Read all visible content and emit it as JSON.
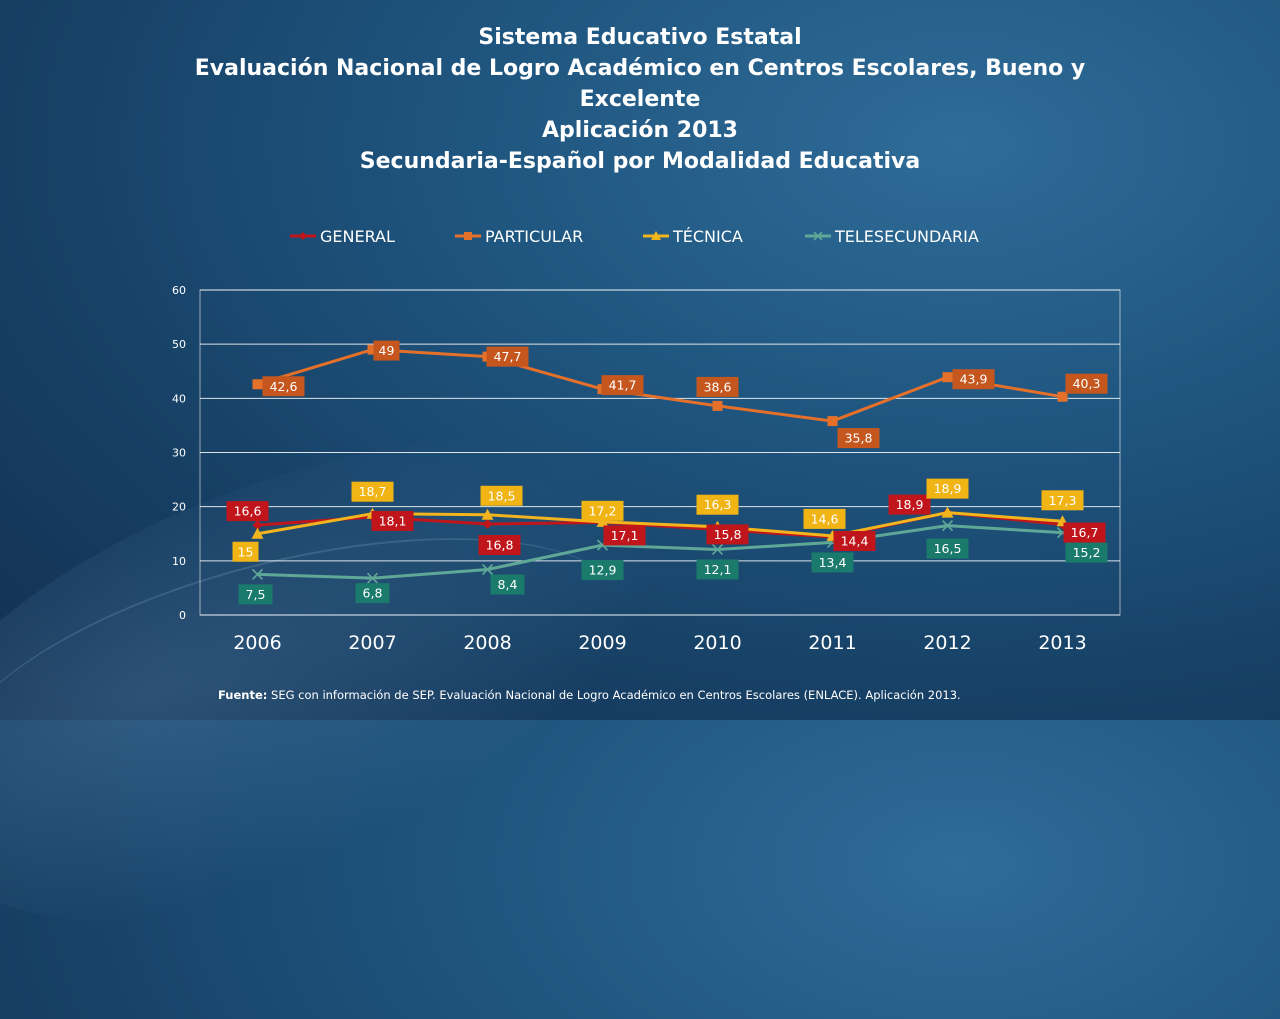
{
  "header": {
    "line1": "Sistema Educativo Estatal",
    "line2": "Evaluación Nacional de Logro Académico en Centros Escolares, Bueno y Excelente",
    "line3": "Aplicación 2013",
    "line4": "Secundaria-Español por Modalidad Educativa"
  },
  "footer": {
    "label": "Fuente:",
    "text": " SEG con información de SEP. Evaluación Nacional de Logro Académico en Centros Escolares (ENLACE). Aplicación 2013."
  },
  "chart_data": {
    "type": "line",
    "categories": [
      "2006",
      "2007",
      "2008",
      "2009",
      "2010",
      "2011",
      "2012",
      "2013"
    ],
    "ylim": [
      0,
      60
    ],
    "yticks": [
      0,
      10,
      20,
      30,
      40,
      50,
      60
    ],
    "grid": true,
    "legend_position": "top",
    "series": [
      {
        "name": "GENERAL",
        "color": "#c0161b",
        "label_bg": "#c0161b",
        "marker": "diamond",
        "values": [
          16.6,
          18.1,
          16.8,
          17.1,
          15.8,
          14.4,
          18.9,
          16.7
        ],
        "labels": [
          "16,6",
          "18,1",
          "16,8",
          "17,1",
          "15,8",
          "14,4",
          "18,9",
          "16,7"
        ]
      },
      {
        "name": "PARTICULAR",
        "color": "#e4702a",
        "label_bg": "#c5561e",
        "marker": "square",
        "values": [
          42.6,
          49,
          47.7,
          41.7,
          38.6,
          35.8,
          43.9,
          40.3
        ],
        "labels": [
          "42,6",
          "49",
          "47,7",
          "41,7",
          "38,6",
          "35,8",
          "43,9",
          "40,3"
        ]
      },
      {
        "name": "TÉCNICA",
        "color": "#f2b51d",
        "label_bg": "#f0b414",
        "marker": "triangle",
        "values": [
          15,
          18.7,
          18.5,
          17.2,
          16.3,
          14.6,
          18.9,
          17.3
        ],
        "labels": [
          "15",
          "18,7",
          "18,5",
          "17,2",
          "16,3",
          "14,6",
          "18,9",
          "17,3"
        ]
      },
      {
        "name": "TELESECUNDARIA",
        "color": "#5fa898",
        "label_bg": "#1a7a6c",
        "marker": "x",
        "values": [
          7.5,
          6.8,
          8.4,
          12.9,
          12.1,
          13.4,
          16.5,
          15.2
        ],
        "labels": [
          "7,5",
          "6,8",
          "8,4",
          "12,9",
          "12,1",
          "13,4",
          "16,5",
          "15,2"
        ]
      }
    ]
  }
}
